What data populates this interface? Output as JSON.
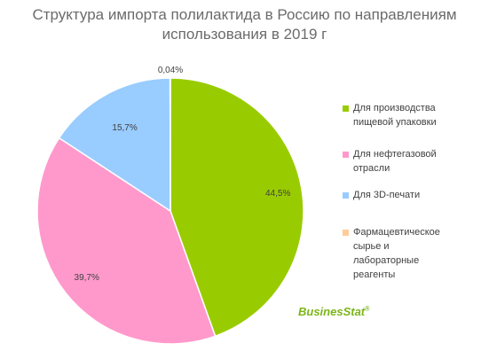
{
  "chart_data": {
    "type": "pie",
    "title_lines": [
      "Структура импорта полилактида в Россию по направлениям",
      "использования в 2019 г"
    ],
    "slices": [
      {
        "label": "Для производства пищевой упаковки",
        "value": 44.5,
        "display": "44,5%",
        "color": "#99cc00"
      },
      {
        "label": "Для нефтегазовой отрасли",
        "value": 39.7,
        "display": "39,7%",
        "color": "#ff99cc"
      },
      {
        "label": "Для 3D-печати",
        "value": 15.7,
        "display": "15,7%",
        "color": "#99ccff"
      },
      {
        "label": "Фармацевтическое сырье и лабораторные реагенты",
        "value": 0.04,
        "display": "0,04%",
        "color": "#ffcc99"
      }
    ],
    "legend_position": "right"
  },
  "legend": {
    "items": [
      {
        "lines": [
          "Для производства",
          "пищевой упаковки"
        ],
        "color": "#99cc00"
      },
      {
        "lines": [
          "Для нефтегазовой",
          "отрасли"
        ],
        "color": "#ff99cc"
      },
      {
        "lines": [
          "Для 3D-печати"
        ],
        "color": "#99ccff"
      },
      {
        "lines": [
          "Фармацевтическое",
          "сырье и",
          "лабораторные",
          "реагенты"
        ],
        "color": "#ffcc99"
      }
    ]
  },
  "logo": {
    "text": "BusinesStat",
    "mark": "®"
  }
}
